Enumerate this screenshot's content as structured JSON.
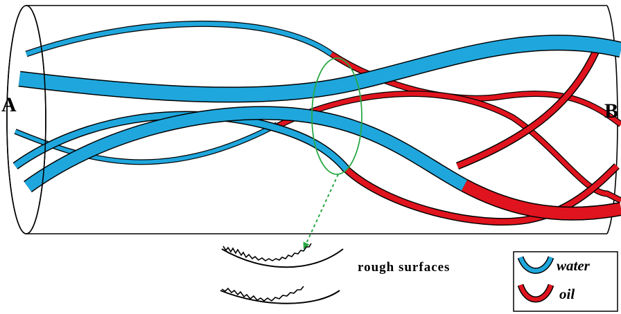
{
  "labels": {
    "end_a": "A",
    "end_b": "B",
    "rough_surfaces": "rough surfaces"
  },
  "legend": {
    "water": "water",
    "oil": "oil"
  },
  "colors": {
    "water": "#1fa7dd",
    "oil": "#e0141e",
    "highlight": "#27a844",
    "outline": "#000000"
  }
}
